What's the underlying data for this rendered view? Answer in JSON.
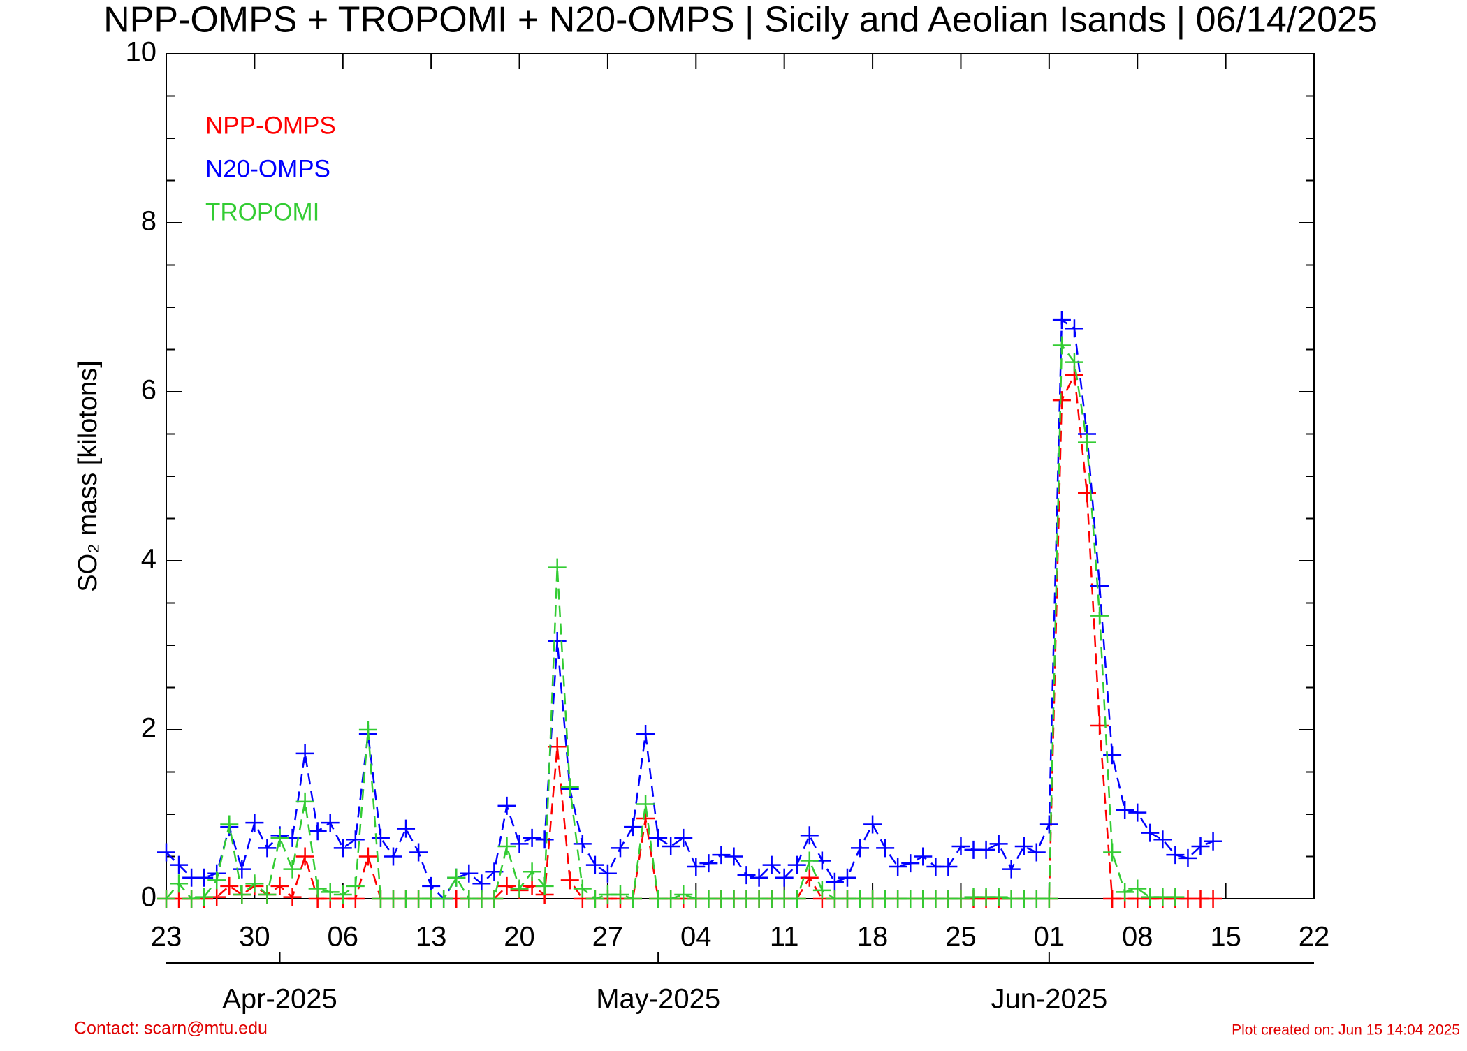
{
  "chart_data": {
    "type": "line",
    "title": "NPP-OMPS + TROPOMI + N20-OMPS | Sicily and Aeolian Isands | 06/14/2025",
    "y_label": "SO₂ mass [kilotons]",
    "contact": "Contact: scarn@mtu.edu",
    "created": "Plot created on: Jun 15 14:04 2025",
    "x": [
      "2025-03-23",
      "2025-03-24",
      "2025-03-25",
      "2025-03-26",
      "2025-03-27",
      "2025-03-28",
      "2025-03-29",
      "2025-03-30",
      "2025-03-31",
      "2025-04-01",
      "2025-04-02",
      "2025-04-03",
      "2025-04-04",
      "2025-04-05",
      "2025-04-06",
      "2025-04-07",
      "2025-04-08",
      "2025-04-09",
      "2025-04-10",
      "2025-04-11",
      "2025-04-12",
      "2025-04-13",
      "2025-04-14",
      "2025-04-15",
      "2025-04-16",
      "2025-04-17",
      "2025-04-18",
      "2025-04-19",
      "2025-04-20",
      "2025-04-21",
      "2025-04-22",
      "2025-04-23",
      "2025-04-24",
      "2025-04-25",
      "2025-04-26",
      "2025-04-27",
      "2025-04-28",
      "2025-04-29",
      "2025-04-30",
      "2025-05-01",
      "2025-05-02",
      "2025-05-03",
      "2025-05-04",
      "2025-05-05",
      "2025-05-06",
      "2025-05-07",
      "2025-05-08",
      "2025-05-09",
      "2025-05-10",
      "2025-05-11",
      "2025-05-12",
      "2025-05-13",
      "2025-05-14",
      "2025-05-15",
      "2025-05-16",
      "2025-05-17",
      "2025-05-18",
      "2025-05-19",
      "2025-05-20",
      "2025-05-21",
      "2025-05-22",
      "2025-05-23",
      "2025-05-24",
      "2025-05-25",
      "2025-05-26",
      "2025-05-27",
      "2025-05-28",
      "2025-05-29",
      "2025-05-30",
      "2025-05-31",
      "2025-06-01",
      "2025-06-02",
      "2025-06-03",
      "2025-06-04",
      "2025-06-05",
      "2025-06-06",
      "2025-06-07",
      "2025-06-08",
      "2025-06-09",
      "2025-06-10",
      "2025-06-11",
      "2025-06-12",
      "2025-06-13",
      "2025-06-14"
    ],
    "series": [
      {
        "name": "NPP-OMPS",
        "color": "#ff0000",
        "values": [
          0,
          0,
          0,
          0,
          0.02,
          0.15,
          0.05,
          0.15,
          0.05,
          0.15,
          0.02,
          0.5,
          0,
          0,
          0,
          0,
          0.5,
          0,
          0,
          0,
          0,
          0,
          0,
          0,
          0,
          0,
          0,
          0.15,
          0.1,
          0.15,
          0.05,
          1.8,
          0.22,
          0,
          0,
          0,
          0,
          0,
          0.95,
          0,
          0,
          0,
          0,
          0,
          0,
          0,
          0,
          0,
          0,
          0,
          0,
          0.25,
          0,
          0,
          0,
          0,
          0,
          0,
          0,
          0,
          0,
          0,
          0,
          0,
          0,
          0,
          0,
          0,
          0,
          0,
          0,
          5.9,
          6.2,
          4.8,
          2.05,
          0,
          0,
          0,
          0,
          0,
          0,
          0,
          0,
          0
        ]
      },
      {
        "name": "N20-OMPS",
        "color": "#0000ff",
        "values": [
          0.55,
          0.4,
          0.25,
          0.25,
          0.3,
          0.85,
          0.35,
          0.9,
          0.6,
          0.75,
          0.72,
          1.72,
          0.8,
          0.9,
          0.6,
          0.7,
          1.95,
          0.72,
          0.5,
          0.83,
          0.55,
          0.15,
          0.0,
          0.25,
          0.3,
          0.18,
          0.32,
          1.1,
          0.65,
          0.72,
          0.7,
          3.05,
          1.3,
          0.65,
          0.4,
          0.3,
          0.6,
          0.85,
          1.95,
          0.72,
          0.62,
          0.72,
          0.38,
          0.42,
          0.52,
          0.5,
          0.28,
          0.25,
          0.4,
          0.25,
          0.4,
          0.75,
          0.45,
          0.2,
          0.25,
          0.6,
          0.88,
          0.6,
          0.38,
          0.42,
          0.5,
          0.38,
          0.38,
          0.62,
          0.58,
          0.58,
          0.65,
          0.35,
          0.62,
          0.55,
          0.88,
          6.85,
          6.75,
          5.5,
          3.7,
          1.7,
          1.05,
          1.02,
          0.78,
          0.7,
          0.52,
          0.48,
          0.62,
          0.68
        ]
      },
      {
        "name": "TROPOMI",
        "color": "#33cc33",
        "values": [
          0,
          0.18,
          0,
          0.02,
          0.22,
          0.88,
          0.05,
          0.18,
          0.05,
          0.72,
          0.35,
          1.15,
          0.12,
          0.08,
          0.05,
          0.15,
          2.0,
          0,
          0,
          0,
          0,
          0,
          0,
          0.25,
          0,
          0,
          0,
          0.62,
          0.12,
          0.32,
          0.15,
          3.92,
          1.32,
          0.12,
          0,
          0.05,
          0.05,
          0,
          1.12,
          0,
          0,
          0.05,
          0,
          0,
          0,
          0,
          0,
          0,
          0,
          0,
          0,
          0.45,
          0.1,
          0,
          0,
          0,
          0,
          0,
          0,
          0,
          0,
          0,
          0,
          0,
          0.02,
          0.02,
          0.02,
          0,
          0,
          0,
          0,
          6.55,
          6.35,
          5.4,
          3.35,
          0.55,
          0.08,
          0.12,
          0.02,
          0.02,
          0.02,
          null,
          null,
          null
        ]
      }
    ],
    "xlim": [
      "2025-03-23",
      "2025-06-22"
    ],
    "xticks": [
      {
        "value": "2025-03-23",
        "label": "23"
      },
      {
        "value": "2025-03-30",
        "label": "30"
      },
      {
        "value": "2025-04-06",
        "label": "06"
      },
      {
        "value": "2025-04-13",
        "label": "13"
      },
      {
        "value": "2025-04-20",
        "label": "20"
      },
      {
        "value": "2025-04-27",
        "label": "27"
      },
      {
        "value": "2025-05-04",
        "label": "04"
      },
      {
        "value": "2025-05-11",
        "label": "11"
      },
      {
        "value": "2025-05-18",
        "label": "18"
      },
      {
        "value": "2025-05-25",
        "label": "25"
      },
      {
        "value": "2025-06-01",
        "label": "01"
      },
      {
        "value": "2025-06-08",
        "label": "08"
      },
      {
        "value": "2025-06-15",
        "label": "15"
      },
      {
        "value": "2025-06-22",
        "label": "22"
      }
    ],
    "month_ticks": [
      {
        "value": "2025-04-01",
        "label": "Apr-2025"
      },
      {
        "value": "2025-05-01",
        "label": "May-2025"
      },
      {
        "value": "2025-06-01",
        "label": "Jun-2025"
      }
    ],
    "ylim": [
      0,
      10
    ],
    "yticks": [
      0,
      2,
      4,
      6,
      8,
      10
    ],
    "legend": "upper left"
  }
}
